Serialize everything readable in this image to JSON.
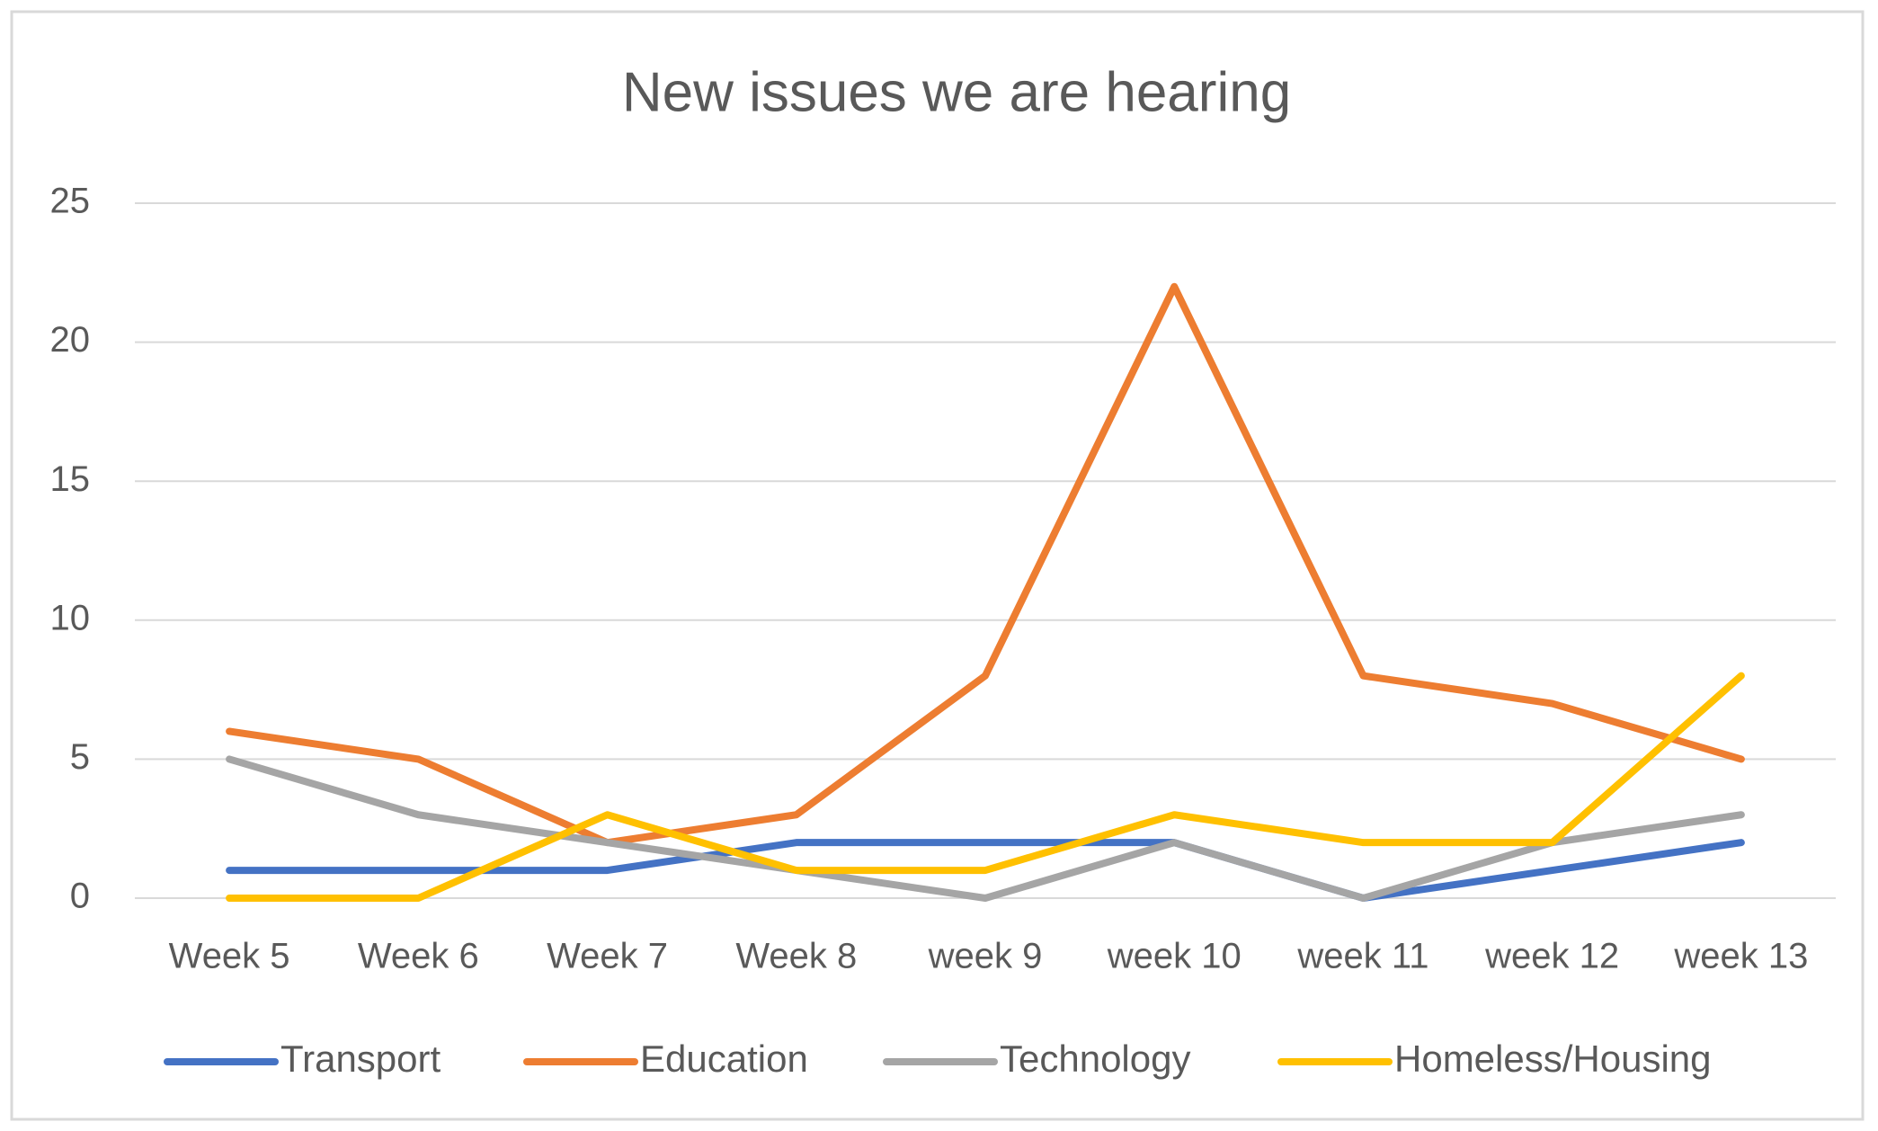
{
  "chart_data": {
    "type": "line",
    "title": "New issues we are hearing",
    "categories": [
      "Week 5",
      "Week 6",
      "Week 7",
      "Week 8",
      "week 9",
      "week 10",
      "week 11",
      "week 12",
      "week 13"
    ],
    "series": [
      {
        "name": "Transport",
        "color": "#4472c4",
        "values": [
          1,
          1,
          1,
          2,
          2,
          2,
          0,
          1,
          2
        ]
      },
      {
        "name": "Education",
        "color": "#ed7d31",
        "values": [
          6,
          5,
          2,
          3,
          8,
          22,
          8,
          7,
          5
        ]
      },
      {
        "name": "Technology",
        "color": "#a5a5a5",
        "values": [
          5,
          3,
          2,
          1,
          0,
          2,
          0,
          2,
          3
        ]
      },
      {
        "name": "Homeless/Housing",
        "color": "#ffc000",
        "values": [
          0,
          0,
          3,
          1,
          1,
          3,
          2,
          2,
          8
        ]
      }
    ],
    "ylim": [
      0,
      25
    ],
    "yticks": [
      0,
      5,
      10,
      15,
      20,
      25
    ],
    "grid": true,
    "legend": "bottom"
  }
}
